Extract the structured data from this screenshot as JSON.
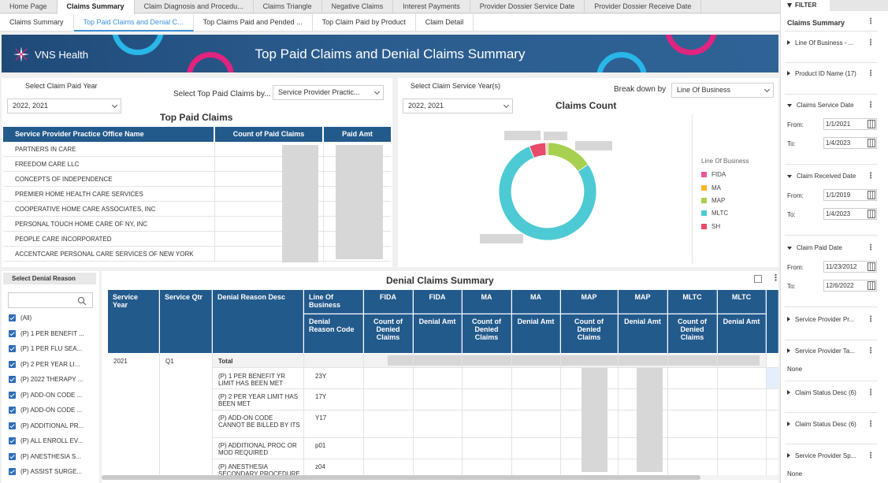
{
  "top_tabs": [
    "Home Page",
    "Claims Summary",
    "Claim Diagnosis and Procedu...",
    "Claims Triangle",
    "Negative Claims",
    "Interest Payments",
    "Provider Dossier Service Date",
    "Provider Dossier Receive Date"
  ],
  "sub_tabs": [
    "Claims Summary",
    "Top Paid Claims and Denial C...",
    "Top Claims Paid and Pended ...",
    "Top Claim Paid by Product",
    "Claim Detail"
  ],
  "banner": {
    "logo_text": "VNS Health",
    "title": "Top Paid Claims and Denial Claims Summary"
  },
  "top_paid": {
    "year_label": "Select Claim Paid Year",
    "year_value": "2022, 2021",
    "by_label": "Select Top Paid Claims by...",
    "by_value": "Service Provider Practic...",
    "title": "Top Paid Claims",
    "columns": [
      "Service Provider Practice Office Name",
      "Count of Paid Claims",
      "Paid Amt"
    ],
    "rows": [
      "PARTNERS IN CARE",
      "FREEDOM CARE LLC",
      "CONCEPTS OF INDEPENDENCE",
      "PREMIER HOME HEALTH CARE SERVICES",
      "COOPERATIVE HOME CARE ASSOCIATES, INC",
      "PERSONAL TOUCH HOME CARE OF NY, INC",
      "PEOPLE CARE INCORPORATED",
      "ACCENTCARE PERSONAL CARE SERVICES OF NEW YORK"
    ]
  },
  "claims_count": {
    "year_label": "Select Claim Service Year(s)",
    "year_value": "2022, 2021",
    "breakdown_label": "Break down by",
    "breakdown_value": "Line Of Business",
    "title": "Claims Count",
    "legend_title": "Line Of Business",
    "chart_data": {
      "type": "pie",
      "labels": [
        "FIDA",
        "MA",
        "MAP",
        "MLTC",
        "SH"
      ],
      "values": [
        0.3,
        0.5,
        15.5,
        78.2,
        5.5
      ],
      "colors": [
        "#e8589b",
        "#f5b52e",
        "#a8d050",
        "#4dcad4",
        "#e84a6a"
      ]
    }
  },
  "denial_filter": {
    "title": "Select Denial Reason",
    "items": [
      "(All)",
      "(P) 1 PER BENEFIT ...",
      "(P) 1 PER FLU SEA...",
      "(P) 2 PER YEAR LI...",
      "(P) 2022 THERAPY ...",
      "(P) ADD-ON CODE ...",
      "(P) ADD-ON CODE ...",
      "(P) ADDITIONAL PR...",
      "(P) ALL ENROLL EV...",
      "(P) ANESTHESIA S...",
      "(P) ASSIST SURGE..."
    ]
  },
  "denial": {
    "title": "Denial Claims Summary",
    "headers": {
      "service_year": "Service Year",
      "service_qtr": "Service Qtr",
      "reason_desc": "Denial Reason Desc",
      "lob": "Line Of Business",
      "reason_code": "Denial Reason Code"
    },
    "lob_cols": [
      "FIDA",
      "FIDA",
      "MA",
      "MA",
      "MAP",
      "MAP",
      "MLTC",
      "MLTC"
    ],
    "metric_cols": [
      "Count of Denied Claims",
      "Denial Amt",
      "Count of Denied Claims",
      "Denial Amt",
      "Count of Denied Claims",
      "Denial Amt",
      "Count of Denied Claims",
      "Denial Amt"
    ],
    "year": "2021",
    "qtr": "Q1",
    "total": "Total",
    "rows": [
      {
        "desc": "(P) 1 PER BENEFIT YR LIMIT HAS BEEN MET",
        "code": "23Y"
      },
      {
        "desc": "(P) 2 PER YEAR LIMIT HAS BEEN MET",
        "code": "17Y"
      },
      {
        "desc": "(P) ADD-ON CODE CANNOT BE BILLED BY ITS",
        "code": "Y17"
      },
      {
        "desc": "(P) ADDITIONAL PROC OR MOD REQUIRED",
        "code": "p01"
      },
      {
        "desc": "(P) ANESTHESIA SECONDARY PROCEDURE",
        "code": "z04"
      }
    ]
  },
  "filter_panel": {
    "header": "FILTER",
    "page_name": "Claims Summary",
    "sections": [
      {
        "name": "Line Of Business - ..."
      },
      {
        "name": "Product ID Name (17)"
      },
      {
        "name": "Claims Service Date",
        "from": "1/1/2021",
        "to": "1/4/2023"
      },
      {
        "name": "Claim Received Date",
        "from": "1/1/2019",
        "to": "1/4/2023"
      },
      {
        "name": "Claim Paid Date",
        "from": "11/23/2012",
        "to": "12/6/2022"
      },
      {
        "name": "Service Provider Pr..."
      },
      {
        "name": "Service Provider Ta...",
        "value": "None"
      },
      {
        "name": "Claim Status Desc (6)"
      },
      {
        "name": "Claim Status Desc (6)"
      },
      {
        "name": "Service Provider Sp...",
        "value": "None"
      }
    ],
    "from_label": "From:",
    "to_label": "To:"
  }
}
